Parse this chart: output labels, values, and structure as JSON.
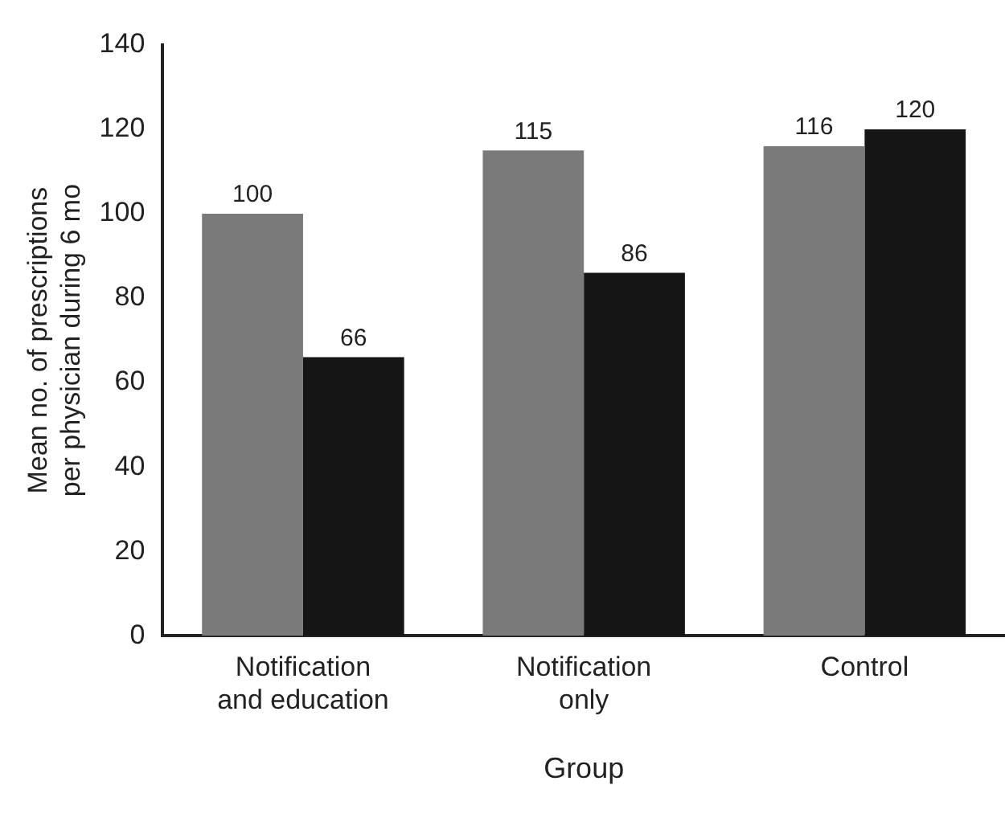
{
  "chart_data": {
    "type": "bar",
    "xlabel": "Group",
    "ylabel": "Mean no. of prescriptions\nper physician during 6 mo",
    "categories": [
      "Notification\nand education",
      "Notification\nonly",
      "Control"
    ],
    "series": [
      {
        "color": "#7a7a7a",
        "values": [
          100,
          115,
          116
        ]
      },
      {
        "color": "#151515",
        "values": [
          66,
          86,
          120
        ]
      }
    ],
    "ylim": [
      0,
      140
    ],
    "yticks": [
      0,
      20,
      40,
      60,
      80,
      100,
      120,
      140
    ],
    "grid": false,
    "legend": false,
    "data_labels": true
  }
}
